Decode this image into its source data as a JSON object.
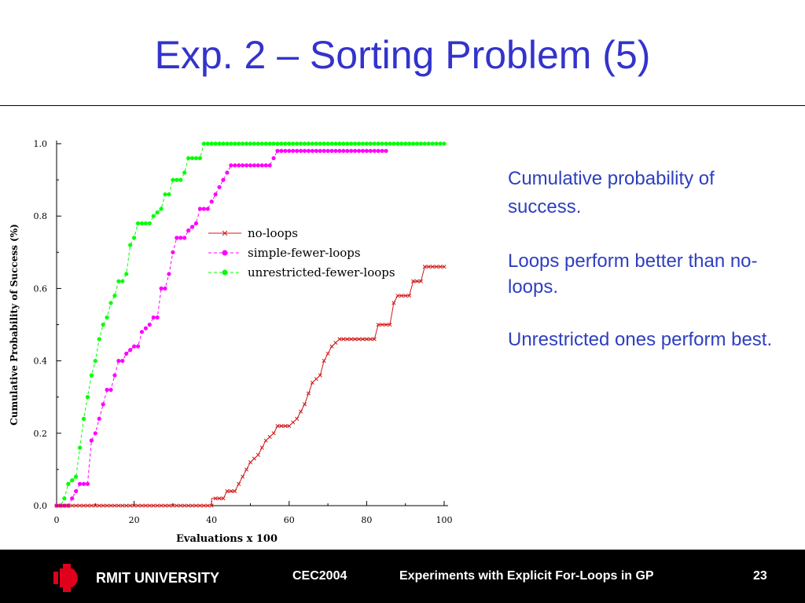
{
  "slide": {
    "title": "Exp. 2 – Sorting Problem (5)"
  },
  "bullets": [
    "Cumulative probability of success.",
    "Loops perform better than no-loops.",
    "Unrestricted ones perform best."
  ],
  "footer": {
    "university": "RMIT UNIVERSITY",
    "conference": "CEC2004",
    "talk_title": "Experiments with Explicit For-Loops in GP",
    "page_number": "23"
  },
  "colors": {
    "title": "#3333cc",
    "body_text": "#2e3fbe",
    "no_loops": "#d01818",
    "simple_fewer_loops": "#ff00ff",
    "unrestricted_fewer_loops": "#00ff00",
    "logo": "#e0001b"
  },
  "chart_data": {
    "type": "line",
    "xlabel": "Evaluations x 100",
    "ylabel": "Cumulative Probability of Success (%)",
    "xlim": [
      0,
      100
    ],
    "ylim": [
      0,
      1.0
    ],
    "xticks": [
      0,
      20,
      40,
      60,
      80,
      100
    ],
    "yticks": [
      "0.0",
      "0.2",
      "0.4",
      "0.6",
      "0.8",
      "1.0"
    ],
    "legend_position": "center",
    "series": [
      {
        "name": "no-loops",
        "marker": "x",
        "color": "#d01818",
        "points": [
          [
            0,
            0
          ],
          [
            40,
            0
          ],
          [
            40,
            0.02
          ],
          [
            43,
            0.02
          ],
          [
            44,
            0.04
          ],
          [
            46,
            0.04
          ],
          [
            48,
            0.08
          ],
          [
            50,
            0.12
          ],
          [
            52,
            0.14
          ],
          [
            54,
            0.18
          ],
          [
            56,
            0.2
          ],
          [
            57,
            0.22
          ],
          [
            60,
            0.22
          ],
          [
            62,
            0.24
          ],
          [
            64,
            0.28
          ],
          [
            66,
            0.34
          ],
          [
            68,
            0.36
          ],
          [
            69,
            0.4
          ],
          [
            71,
            0.44
          ],
          [
            73,
            0.46
          ],
          [
            82,
            0.46
          ],
          [
            83,
            0.5
          ],
          [
            86,
            0.5
          ],
          [
            87,
            0.56
          ],
          [
            88,
            0.58
          ],
          [
            91,
            0.58
          ],
          [
            92,
            0.62
          ],
          [
            94,
            0.62
          ],
          [
            95,
            0.66
          ],
          [
            100,
            0.66
          ]
        ]
      },
      {
        "name": "simple-fewer-loops",
        "marker": "o",
        "color": "#ff00ff",
        "points": [
          [
            0,
            0
          ],
          [
            3,
            0
          ],
          [
            4,
            0.02
          ],
          [
            5,
            0.04
          ],
          [
            6,
            0.06
          ],
          [
            8,
            0.06
          ],
          [
            9,
            0.18
          ],
          [
            10,
            0.2
          ],
          [
            11,
            0.24
          ],
          [
            12,
            0.28
          ],
          [
            13,
            0.32
          ],
          [
            14,
            0.32
          ],
          [
            15,
            0.36
          ],
          [
            16,
            0.4
          ],
          [
            17,
            0.4
          ],
          [
            18,
            0.42
          ],
          [
            20,
            0.44
          ],
          [
            21,
            0.44
          ],
          [
            22,
            0.48
          ],
          [
            24,
            0.5
          ],
          [
            25,
            0.52
          ],
          [
            26,
            0.52
          ],
          [
            27,
            0.6
          ],
          [
            28,
            0.6
          ],
          [
            29,
            0.64
          ],
          [
            30,
            0.7
          ],
          [
            31,
            0.74
          ],
          [
            33,
            0.74
          ],
          [
            34,
            0.76
          ],
          [
            36,
            0.78
          ],
          [
            37,
            0.82
          ],
          [
            39,
            0.82
          ],
          [
            40,
            0.84
          ],
          [
            41,
            0.86
          ],
          [
            43,
            0.9
          ],
          [
            44,
            0.92
          ],
          [
            45,
            0.94
          ],
          [
            55,
            0.94
          ],
          [
            56,
            0.96
          ],
          [
            57,
            0.98
          ],
          [
            85,
            0.98
          ]
        ]
      },
      {
        "name": "unrestricted-fewer-loops",
        "marker": "o",
        "color": "#00ff00",
        "points": [
          [
            0,
            0
          ],
          [
            1,
            0
          ],
          [
            2,
            0.02
          ],
          [
            3,
            0.06
          ],
          [
            5,
            0.08
          ],
          [
            6,
            0.16
          ],
          [
            7,
            0.24
          ],
          [
            8,
            0.3
          ],
          [
            9,
            0.36
          ],
          [
            10,
            0.4
          ],
          [
            11,
            0.46
          ],
          [
            12,
            0.5
          ],
          [
            13,
            0.52
          ],
          [
            14,
            0.56
          ],
          [
            15,
            0.58
          ],
          [
            16,
            0.62
          ],
          [
            17,
            0.62
          ],
          [
            18,
            0.64
          ],
          [
            19,
            0.72
          ],
          [
            20,
            0.74
          ],
          [
            21,
            0.78
          ],
          [
            24,
            0.78
          ],
          [
            25,
            0.8
          ],
          [
            27,
            0.82
          ],
          [
            28,
            0.86
          ],
          [
            29,
            0.86
          ],
          [
            30,
            0.9
          ],
          [
            32,
            0.9
          ],
          [
            33,
            0.92
          ],
          [
            34,
            0.96
          ],
          [
            37,
            0.96
          ],
          [
            38,
            1.0
          ],
          [
            100,
            1.0
          ]
        ]
      }
    ]
  }
}
